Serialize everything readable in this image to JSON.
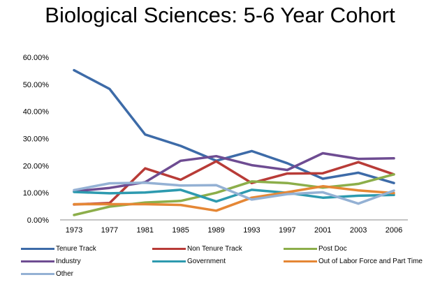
{
  "chart_data": {
    "type": "line",
    "title": "Biological Sciences: 5-6 Year Cohort",
    "xlabel": "",
    "ylabel": "",
    "categories": [
      "1973",
      "1977",
      "1981",
      "1985",
      "1989",
      "1993",
      "1997",
      "2001",
      "2003",
      "2006"
    ],
    "ylim": [
      0,
      60
    ],
    "yticks": [
      "0.00%",
      "10.00%",
      "20.00%",
      "30.00%",
      "40.00%",
      "50.00%",
      "60.00%"
    ],
    "grid": false,
    "legend_position": "bottom",
    "series": [
      {
        "name": "Tenure Track",
        "color": "#3d6ba8",
        "values": [
          55.2,
          48.3,
          31.5,
          27.3,
          21.8,
          25.4,
          20.9,
          15.2,
          17.4,
          13.6
        ]
      },
      {
        "name": "Non Tenure Track",
        "color": "#b83b37",
        "values": [
          5.7,
          6.2,
          19.0,
          14.8,
          21.6,
          13.6,
          17.1,
          17.2,
          21.3,
          16.8
        ]
      },
      {
        "name": "Post Doc",
        "color": "#8cae4a",
        "values": [
          1.8,
          4.9,
          6.4,
          7.0,
          10.0,
          14.2,
          13.6,
          11.9,
          13.3,
          16.8
        ]
      },
      {
        "name": "Industry",
        "color": "#6e4c92",
        "values": [
          10.5,
          11.8,
          13.9,
          21.8,
          23.5,
          20.2,
          18.4,
          24.6,
          22.5,
          22.7
        ]
      },
      {
        "name": "Government",
        "color": "#2d9aaf",
        "values": [
          10.3,
          9.8,
          10.1,
          11.1,
          6.8,
          11.1,
          10.0,
          8.2,
          8.9,
          9.2
        ]
      },
      {
        "name": "Out of Labor Force and Part Time",
        "color": "#e58735",
        "values": [
          5.8,
          5.8,
          5.8,
          5.5,
          3.4,
          8.2,
          10.2,
          12.4,
          10.9,
          9.9
        ]
      },
      {
        "name": "Other",
        "color": "#94b1d4",
        "values": [
          11.0,
          13.5,
          13.7,
          12.7,
          12.8,
          7.5,
          9.5,
          10.2,
          6.0,
          10.8
        ]
      }
    ]
  }
}
